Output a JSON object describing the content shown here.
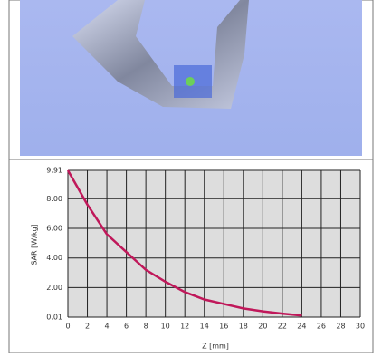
{
  "chart_data": {
    "type": "line",
    "x_label": "Z [mm]",
    "y_label": "SAR [W/kg]",
    "x": [
      0,
      2,
      4,
      6,
      8,
      10,
      12,
      14,
      16,
      18,
      20,
      22,
      24
    ],
    "series": [
      {
        "color": "#c0185a",
        "values": [
          9.91,
          7.6,
          5.6,
          4.4,
          3.2,
          2.4,
          1.7,
          1.2,
          0.9,
          0.6,
          0.4,
          0.25,
          0.12
        ]
      }
    ],
    "xlim": [
      0,
      30
    ],
    "xticks": [
      0,
      2,
      4,
      6,
      8,
      10,
      12,
      14,
      16,
      18,
      20,
      22,
      24,
      26,
      28,
      30
    ],
    "ylim": [
      0.01,
      9.91
    ],
    "yticks": [
      0.01,
      {
        "value": 2,
        "label": "2.00"
      },
      {
        "value": 4,
        "label": "4.00"
      },
      {
        "value": 6,
        "label": "6.00"
      },
      {
        "value": 8,
        "label": "8.00"
      },
      9.91
    ],
    "grid": true
  }
}
